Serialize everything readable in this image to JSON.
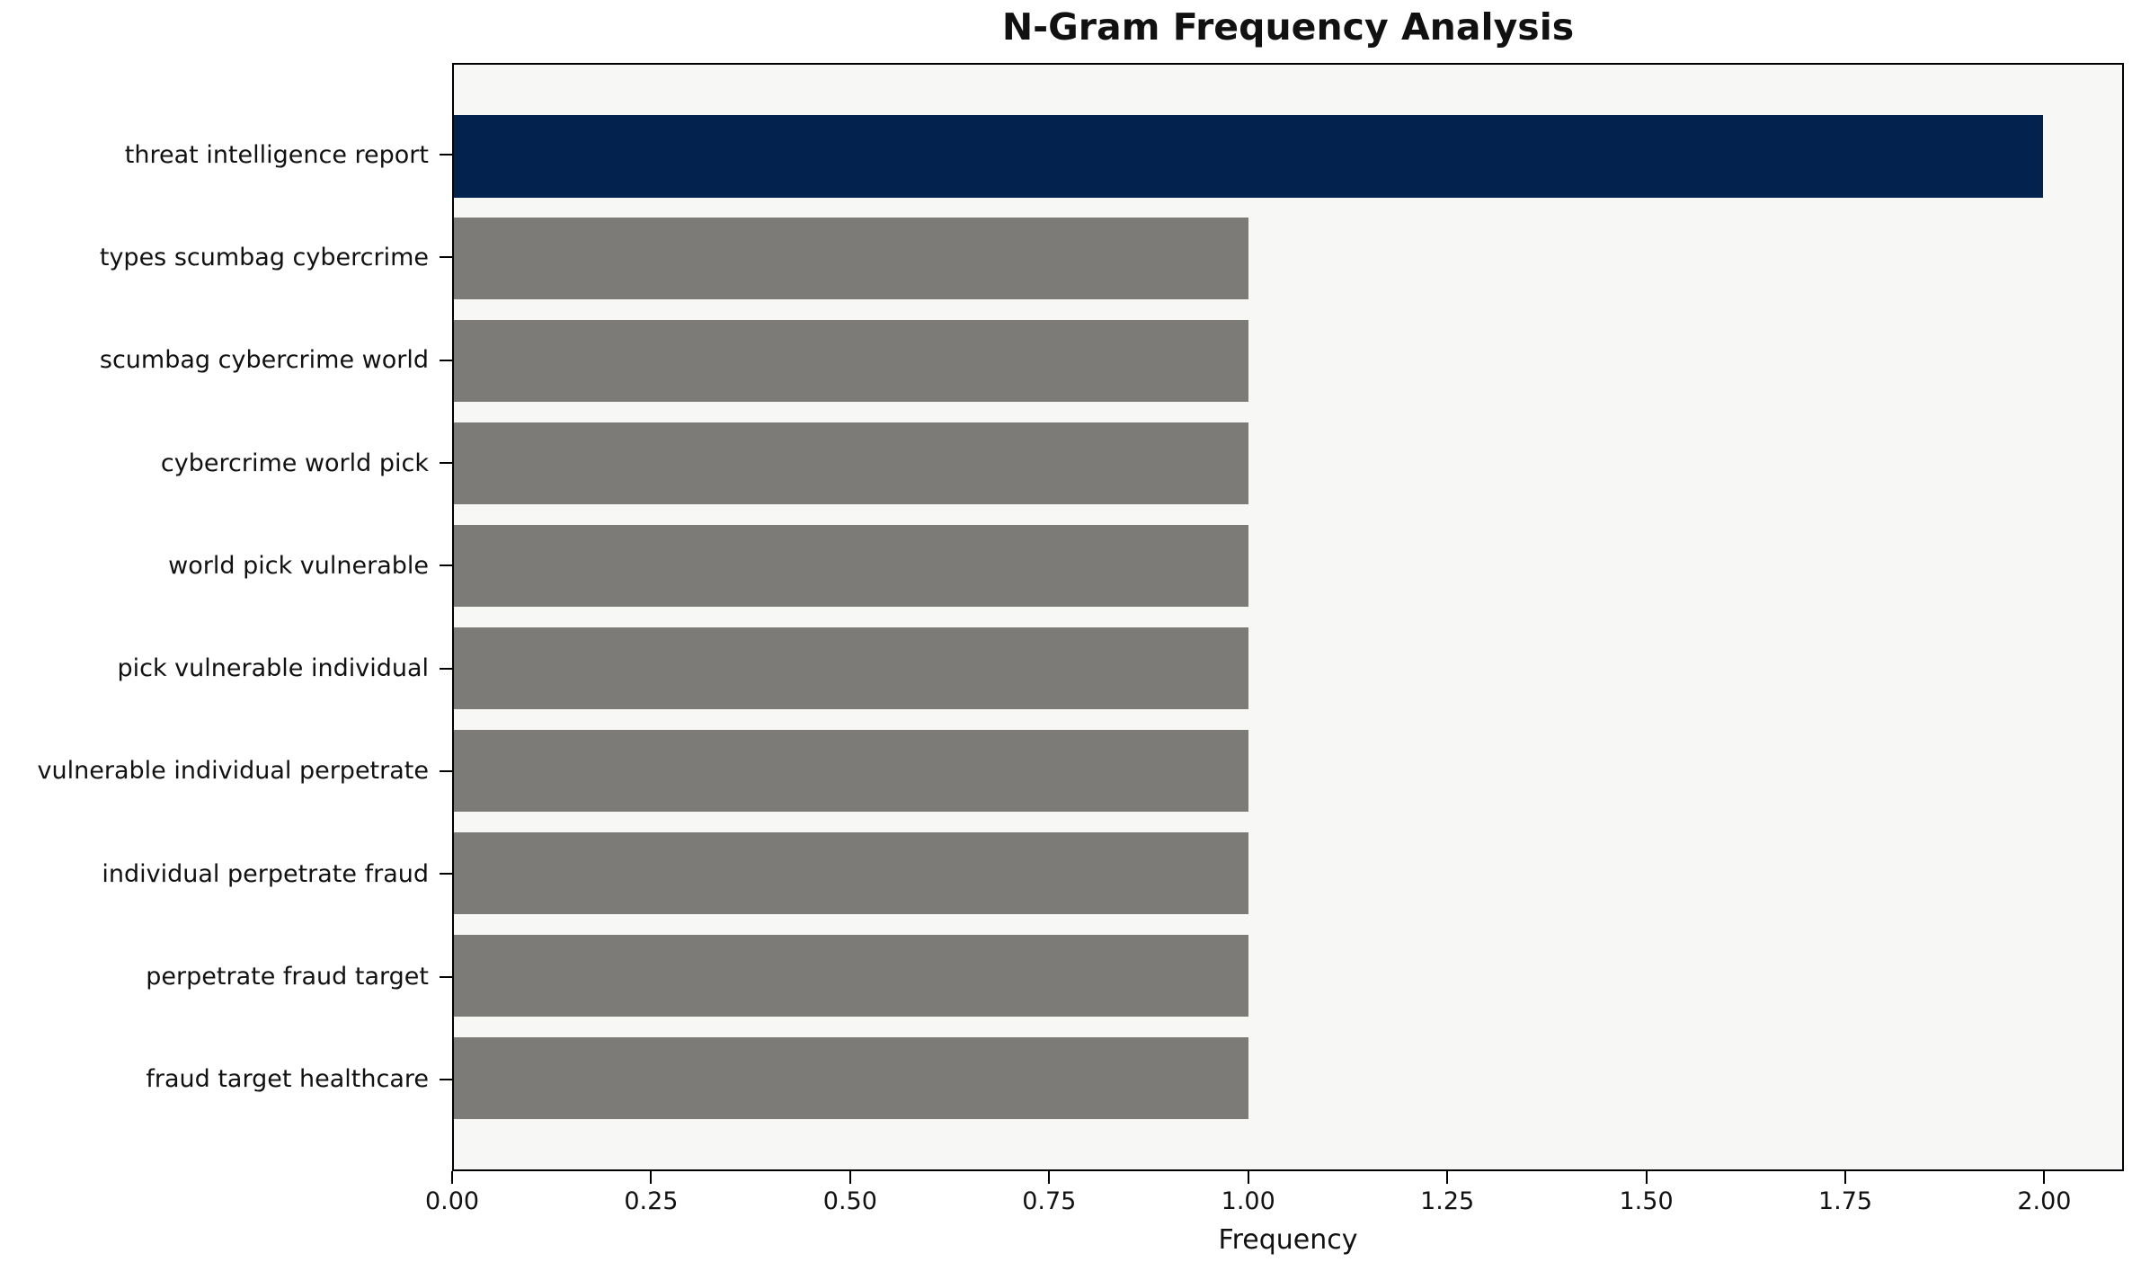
{
  "chart_data": {
    "type": "bar",
    "orientation": "horizontal",
    "title": "N-Gram Frequency Analysis",
    "xlabel": "Frequency",
    "ylabel": "",
    "categories": [
      "threat intelligence report",
      "types scumbag cybercrime",
      "scumbag cybercrime world",
      "cybercrime world pick",
      "world pick vulnerable",
      "pick vulnerable individual",
      "vulnerable individual perpetrate",
      "individual perpetrate fraud",
      "perpetrate fraud target",
      "fraud target healthcare"
    ],
    "values": [
      2,
      1,
      1,
      1,
      1,
      1,
      1,
      1,
      1,
      1
    ],
    "colors": [
      "#03234e",
      "#7c7b78",
      "#7c7b78",
      "#7c7b78",
      "#7c7b78",
      "#7c7b78",
      "#7c7b78",
      "#7c7b78",
      "#7c7b78",
      "#7c7b78"
    ],
    "x_ticks": [
      0,
      0.25,
      0.5,
      0.75,
      1.0,
      1.25,
      1.5,
      1.75,
      2.0
    ],
    "x_tick_labels": [
      "0.00",
      "0.25",
      "0.50",
      "0.75",
      "1.00",
      "1.25",
      "1.50",
      "1.75",
      "2.00"
    ],
    "xlim": [
      0,
      2.1
    ],
    "grid": false,
    "legend": null,
    "plot_background": "#f7f7f6",
    "figure_background": "#ffffff",
    "highlight_color": "#03234e",
    "default_bar_color": "#7c7b78"
  }
}
